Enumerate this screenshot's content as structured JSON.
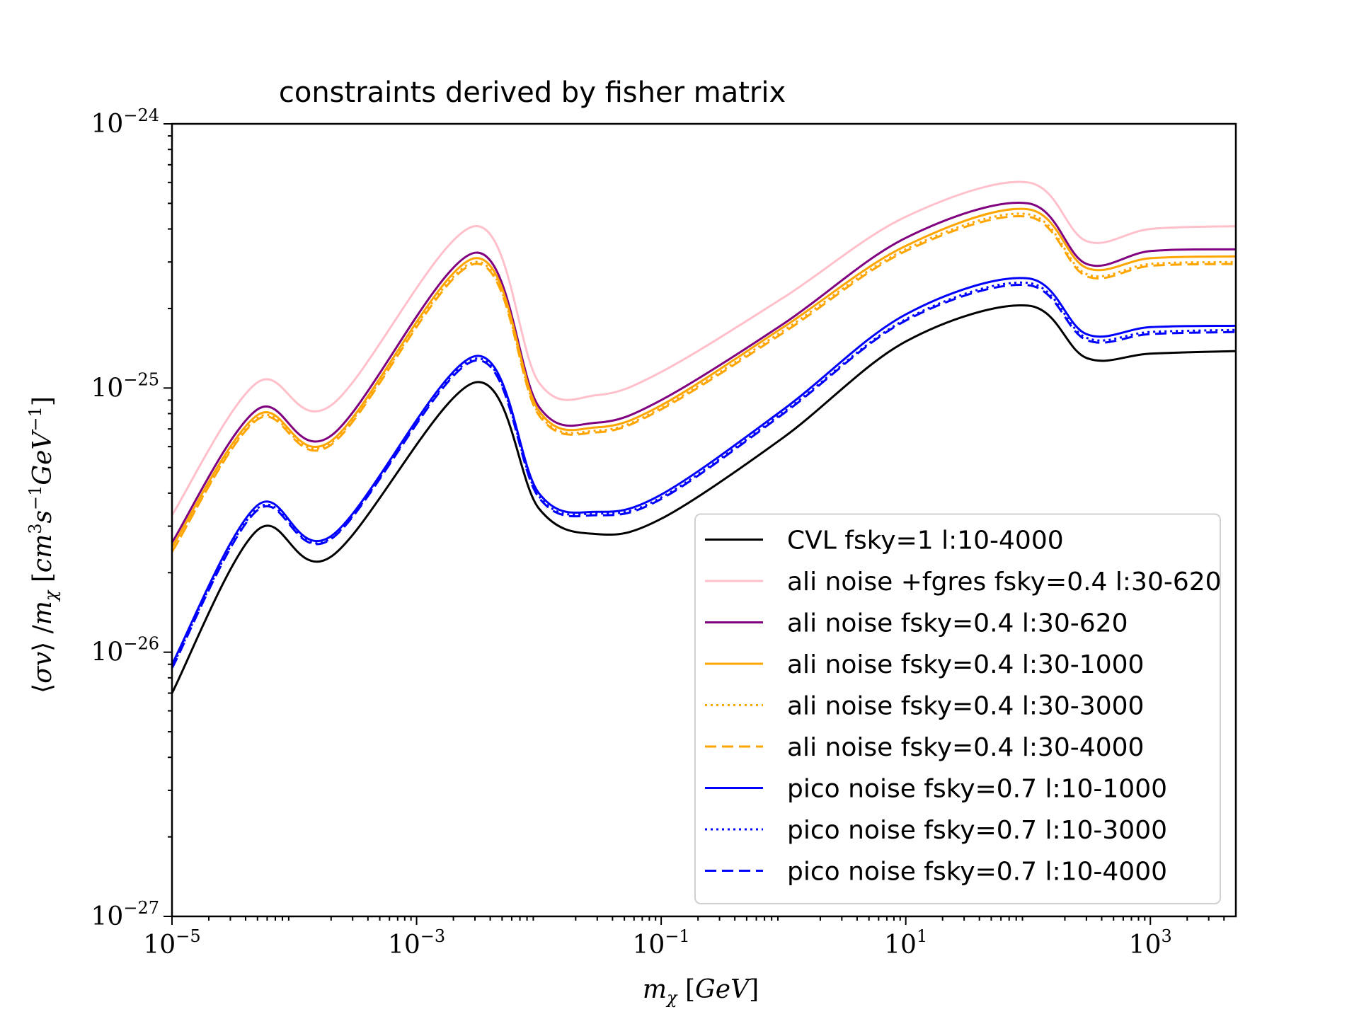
{
  "chart_data": {
    "type": "line",
    "title": "constraints derived by fisher matrix",
    "xlabel": "m_χ [GeV]",
    "ylabel": "⟨σv⟩ / m_χ [cm³ s⁻¹ GeV⁻¹]",
    "xscale": "log",
    "yscale": "log",
    "xlim": [
      1e-05,
      5000
    ],
    "ylim": [
      1e-27,
      1e-24
    ],
    "x_ticks": [
      {
        "value": 1e-05,
        "mant": "10",
        "exp": "−5"
      },
      {
        "value": 0.001,
        "mant": "10",
        "exp": "−3"
      },
      {
        "value": 0.1,
        "mant": "10",
        "exp": "−1"
      },
      {
        "value": 10,
        "mant": "10",
        "exp": "1"
      },
      {
        "value": 1000,
        "mant": "10",
        "exp": "3"
      }
    ],
    "y_ticks": [
      {
        "value": 1e-24,
        "mant": "10",
        "exp": "−24"
      },
      {
        "value": 1e-25,
        "mant": "10",
        "exp": "−25"
      },
      {
        "value": 1e-26,
        "mant": "10",
        "exp": "−26"
      },
      {
        "value": 1e-27,
        "mant": "10",
        "exp": "−27"
      }
    ],
    "grid": false,
    "legend_position": "lower right",
    "x": [
      1e-05,
      5e-05,
      0.0002,
      0.003,
      0.01,
      0.03,
      0.1,
      1,
      10,
      100,
      300,
      1000,
      5000
    ],
    "series": [
      {
        "name": "CVL fsky=1 l:10-4000",
        "color": "#000000",
        "style": "solid",
        "values": [
          7e-27,
          2.9e-26,
          2.3e-26,
          1.05e-25,
          3.5e-26,
          2.8e-26,
          3.2e-26,
          6.5e-26,
          1.5e-25,
          2.05e-25,
          1.3e-25,
          1.35e-25,
          1.38e-25
        ]
      },
      {
        "name": "ali noise +fgres fsky=0.4 l:30-620",
        "color": "#ffc0cb",
        "style": "solid",
        "values": [
          3.3e-26,
          1.05e-25,
          8.6e-26,
          4.1e-25,
          1.05e-25,
          9.4e-26,
          1.15e-25,
          2.2e-25,
          4.45e-25,
          6e-25,
          3.6e-25,
          4e-25,
          4.1e-25
        ]
      },
      {
        "name": "ali noise fsky=0.4 l:30-620",
        "color": "#800080",
        "style": "solid",
        "values": [
          2.6e-26,
          8.3e-26,
          6.6e-26,
          3.25e-25,
          8.5e-26,
          7.4e-26,
          9e-26,
          1.75e-25,
          3.7e-25,
          5e-25,
          2.95e-25,
          3.3e-25,
          3.35e-25
        ]
      },
      {
        "name": "ali noise fsky=0.4 l:30-1000",
        "color": "#ffa500",
        "style": "solid",
        "values": [
          2.5e-26,
          7.9e-26,
          6.3e-26,
          3.1e-25,
          8.2e-26,
          7.1e-26,
          8.6e-26,
          1.7e-25,
          3.45e-25,
          4.75e-25,
          2.85e-25,
          3.1e-25,
          3.15e-25
        ]
      },
      {
        "name": "ali noise fsky=0.4 l:30-3000",
        "color": "#ffa500",
        "style": "dotted",
        "values": [
          2.4e-26,
          7.7e-26,
          6.2e-26,
          3e-25,
          8e-26,
          6.9e-26,
          8.4e-26,
          1.65e-25,
          3.35e-25,
          4.55e-25,
          2.7e-25,
          2.95e-25,
          3e-25
        ]
      },
      {
        "name": "ali noise fsky=0.4 l:30-4000",
        "color": "#ffa500",
        "style": "dashed",
        "values": [
          2.4e-26,
          7.6e-26,
          6.1e-26,
          2.95e-25,
          7.9e-26,
          6.8e-26,
          8.3e-26,
          1.62e-25,
          3.3e-25,
          4.45e-25,
          2.65e-25,
          2.9e-25,
          2.95e-25
        ]
      },
      {
        "name": "pico noise fsky=0.7 l:10-1000",
        "color": "#0000ff",
        "style": "solid",
        "values": [
          9e-27,
          3.6e-26,
          2.75e-26,
          1.32e-25,
          4e-26,
          3.4e-26,
          3.95e-26,
          8.3e-26,
          1.9e-25,
          2.6e-25,
          1.6e-25,
          1.7e-25,
          1.72e-25
        ]
      },
      {
        "name": "pico noise fsky=0.7 l:10-3000",
        "color": "#0000ff",
        "style": "dotted",
        "values": [
          8.8e-27,
          3.5e-26,
          2.7e-26,
          1.29e-25,
          3.9e-26,
          3.35e-26,
          3.85e-26,
          8.1e-26,
          1.82e-25,
          2.5e-25,
          1.55e-25,
          1.63e-25,
          1.66e-25
        ]
      },
      {
        "name": "pico noise fsky=0.7 l:10-4000",
        "color": "#0000ff",
        "style": "dashed",
        "values": [
          8.7e-27,
          3.45e-26,
          2.68e-26,
          1.27e-25,
          3.85e-26,
          3.3e-26,
          3.8e-26,
          8e-26,
          1.8e-25,
          2.45e-25,
          1.52e-25,
          1.6e-25,
          1.63e-25
        ]
      }
    ]
  }
}
